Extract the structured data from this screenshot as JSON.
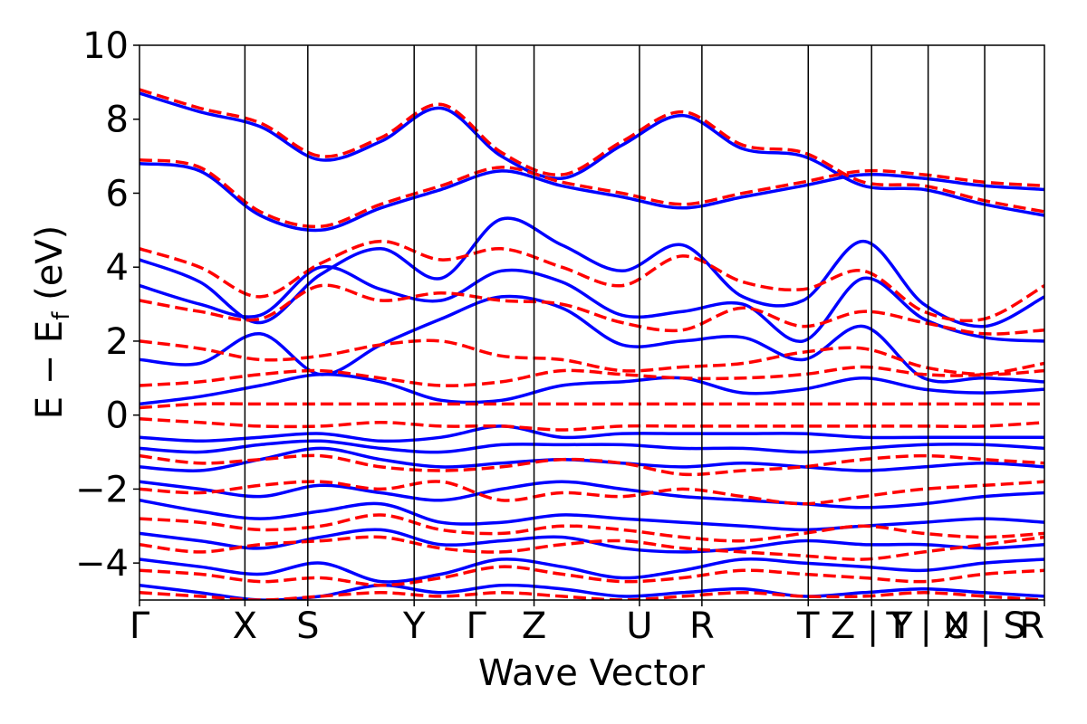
{
  "chart_data": {
    "type": "line",
    "xlabel": "Wave Vector",
    "ylabel": {
      "main": "E − E",
      "subscript": "f",
      "unit": " (eV)"
    },
    "ylim": [
      -5,
      10
    ],
    "yticks": [
      {
        "value": 10,
        "label": "10"
      },
      {
        "value": 8,
        "label": "8"
      },
      {
        "value": 6,
        "label": "6"
      },
      {
        "value": 4,
        "label": "4"
      },
      {
        "value": 2,
        "label": "2"
      },
      {
        "value": 0,
        "label": "0"
      },
      {
        "value": -2,
        "label": "−2"
      },
      {
        "value": -4,
        "label": "−4"
      }
    ],
    "xlim": [
      0,
      1
    ],
    "kpath": [
      {
        "label": "Γ",
        "x": 0.0
      },
      {
        "label": "X",
        "x": 0.1165
      },
      {
        "label": "S",
        "x": 0.186
      },
      {
        "label": "Y",
        "x": 0.3035
      },
      {
        "label": "Γ",
        "x": 0.372
      },
      {
        "label": "Z",
        "x": 0.436
      },
      {
        "label": "U",
        "x": 0.5525
      },
      {
        "label": "R",
        "x": 0.6215
      },
      {
        "label": "T",
        "x": 0.739
      },
      {
        "label": "Z | Y",
        "x": 0.809
      },
      {
        "label": "T | U",
        "x": 0.8715
      },
      {
        "label": "X | S",
        "x": 0.934
      },
      {
        "label": "R",
        "x": 1.0
      }
    ],
    "grid": false,
    "series": [
      {
        "style": "solid",
        "color": "#0000ff",
        "bands": [
          {
            "y": [
              6.8,
              6.6,
              5.4,
              5.0,
              5.6,
              6.1,
              6.6,
              6.2,
              5.9,
              5.6,
              5.9,
              6.2,
              6.5,
              6.4,
              6.2,
              6.1
            ]
          },
          {
            "y": [
              8.7,
              8.2,
              7.8,
              6.9,
              7.4,
              8.3,
              7.0,
              6.4,
              7.3,
              8.1,
              7.2,
              7.0,
              6.2,
              6.1,
              5.7,
              5.4
            ]
          },
          {
            "y": [
              4.2,
              3.6,
              2.5,
              3.8,
              4.5,
              3.7,
              5.3,
              4.6,
              3.9,
              4.6,
              3.2,
              3.1,
              4.7,
              3.0,
              2.4,
              3.2
            ]
          },
          {
            "y": [
              3.5,
              3.0,
              2.7,
              4.0,
              3.4,
              3.1,
              3.9,
              3.6,
              2.7,
              2.8,
              3.0,
              2.0,
              3.7,
              2.6,
              2.1,
              2.0
            ]
          },
          {
            "y": [
              1.5,
              1.4,
              2.2,
              1.1,
              1.9,
              2.6,
              3.2,
              2.9,
              1.9,
              2.0,
              2.1,
              1.5,
              2.4,
              1.0,
              1.0,
              0.9
            ]
          },
          {
            "y": [
              0.3,
              0.5,
              0.8,
              1.1,
              0.9,
              0.4,
              0.4,
              0.8,
              0.9,
              1.0,
              0.6,
              0.7,
              1.0,
              0.7,
              0.6,
              0.7
            ]
          },
          {
            "y": [
              -0.6,
              -0.7,
              -0.6,
              -0.5,
              -0.7,
              -0.6,
              -0.3,
              -0.6,
              -0.5,
              -0.5,
              -0.5,
              -0.5,
              -0.6,
              -0.6,
              -0.6,
              -0.6
            ]
          },
          {
            "y": [
              -0.9,
              -1.0,
              -0.8,
              -0.7,
              -0.9,
              -1.0,
              -0.8,
              -0.8,
              -0.8,
              -0.9,
              -0.9,
              -1.0,
              -0.9,
              -0.8,
              -0.8,
              -0.9
            ]
          },
          {
            "y": [
              -1.4,
              -1.5,
              -1.2,
              -0.9,
              -1.2,
              -1.4,
              -1.3,
              -1.2,
              -1.3,
              -1.4,
              -1.3,
              -1.4,
              -1.5,
              -1.4,
              -1.3,
              -1.4
            ]
          },
          {
            "y": [
              -1.8,
              -2.0,
              -2.2,
              -1.9,
              -2.1,
              -2.3,
              -2.0,
              -1.8,
              -2.0,
              -2.2,
              -2.3,
              -2.4,
              -2.5,
              -2.4,
              -2.2,
              -2.1
            ]
          },
          {
            "y": [
              -2.3,
              -2.6,
              -2.8,
              -2.6,
              -2.4,
              -2.9,
              -2.9,
              -2.7,
              -2.8,
              -2.9,
              -3.0,
              -3.1,
              -3.0,
              -2.9,
              -2.8,
              -2.9
            ]
          },
          {
            "y": [
              -3.2,
              -3.4,
              -3.6,
              -3.3,
              -3.1,
              -3.5,
              -3.4,
              -3.3,
              -3.6,
              -3.7,
              -3.6,
              -3.4,
              -3.5,
              -3.5,
              -3.6,
              -3.5
            ]
          },
          {
            "y": [
              -3.9,
              -4.1,
              -4.3,
              -4.0,
              -4.5,
              -4.3,
              -3.9,
              -4.1,
              -4.4,
              -4.2,
              -3.9,
              -4.0,
              -4.1,
              -4.2,
              -4.0,
              -3.9
            ]
          },
          {
            "y": [
              -4.6,
              -4.8,
              -5.0,
              -4.9,
              -4.6,
              -4.8,
              -4.6,
              -4.7,
              -4.9,
              -4.8,
              -4.7,
              -4.9,
              -4.8,
              -4.7,
              -4.8,
              -4.9
            ]
          }
        ]
      },
      {
        "style": "dashed",
        "color": "#ff0000",
        "bands": [
          {
            "y": [
              6.9,
              6.7,
              5.5,
              5.1,
              5.7,
              6.2,
              6.7,
              6.3,
              6.0,
              5.7,
              6.0,
              6.3,
              6.6,
              6.5,
              6.3,
              6.2
            ]
          },
          {
            "y": [
              8.8,
              8.3,
              7.9,
              7.0,
              7.5,
              8.4,
              7.1,
              6.5,
              7.4,
              8.2,
              7.3,
              7.1,
              6.3,
              6.2,
              5.8,
              5.5
            ]
          },
          {
            "y": [
              4.5,
              4.0,
              3.2,
              4.1,
              4.7,
              4.2,
              4.5,
              4.0,
              3.5,
              4.3,
              3.6,
              3.4,
              3.9,
              2.8,
              2.6,
              3.5
            ]
          },
          {
            "y": [
              3.1,
              2.8,
              2.6,
              3.5,
              3.1,
              3.3,
              3.1,
              3.0,
              2.5,
              2.3,
              2.9,
              2.4,
              2.8,
              2.5,
              2.2,
              2.3
            ]
          },
          {
            "y": [
              2.0,
              1.8,
              1.5,
              1.6,
              1.9,
              2.0,
              1.6,
              1.5,
              1.2,
              1.3,
              1.4,
              1.7,
              1.8,
              1.3,
              1.1,
              1.2
            ]
          },
          {
            "y": [
              0.8,
              0.9,
              1.1,
              1.2,
              1.0,
              0.8,
              0.9,
              1.2,
              1.1,
              1.0,
              1.0,
              1.1,
              1.3,
              1.1,
              1.1,
              1.4
            ]
          },
          {
            "y": [
              0.2,
              0.3,
              0.3,
              0.3,
              0.3,
              0.3,
              0.3,
              0.3,
              0.3,
              0.3,
              0.3,
              0.3,
              0.3,
              0.3,
              0.3,
              0.3
            ]
          },
          {
            "y": [
              -0.1,
              -0.2,
              -0.3,
              -0.3,
              -0.2,
              -0.3,
              -0.3,
              -0.4,
              -0.3,
              -0.3,
              -0.3,
              -0.3,
              -0.3,
              -0.3,
              -0.3,
              -0.2
            ]
          },
          {
            "y": [
              -1.1,
              -1.3,
              -1.2,
              -1.1,
              -1.4,
              -1.5,
              -1.4,
              -1.2,
              -1.3,
              -1.6,
              -1.5,
              -1.4,
              -1.2,
              -1.1,
              -1.2,
              -1.3
            ]
          },
          {
            "y": [
              -2.0,
              -2.1,
              -1.9,
              -1.8,
              -2.0,
              -1.8,
              -2.3,
              -2.1,
              -2.2,
              -2.0,
              -2.2,
              -2.4,
              -2.2,
              -2.0,
              -1.9,
              -1.8
            ]
          },
          {
            "y": [
              -2.8,
              -2.9,
              -3.1,
              -3.0,
              -2.7,
              -3.1,
              -3.2,
              -3.0,
              -3.1,
              -3.3,
              -3.4,
              -3.2,
              -3.0,
              -3.2,
              -3.3,
              -3.2
            ]
          },
          {
            "y": [
              -3.5,
              -3.7,
              -3.5,
              -3.4,
              -3.3,
              -3.6,
              -3.7,
              -3.5,
              -3.4,
              -3.6,
              -3.7,
              -3.8,
              -3.9,
              -3.7,
              -3.5,
              -3.3
            ]
          },
          {
            "y": [
              -4.2,
              -4.3,
              -4.5,
              -4.4,
              -4.6,
              -4.4,
              -4.1,
              -4.3,
              -4.5,
              -4.4,
              -4.2,
              -4.3,
              -4.4,
              -4.5,
              -4.3,
              -4.2
            ]
          },
          {
            "y": [
              -4.8,
              -4.9,
              -5.0,
              -4.9,
              -4.8,
              -4.9,
              -4.8,
              -4.9,
              -5.0,
              -4.9,
              -4.8,
              -4.9,
              -4.9,
              -4.8,
              -4.9,
              -5.0
            ]
          }
        ]
      }
    ]
  }
}
